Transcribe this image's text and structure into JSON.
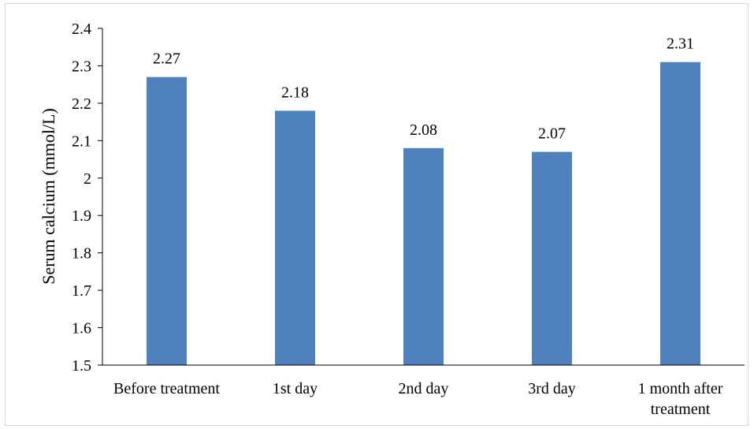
{
  "chart_data": {
    "type": "bar",
    "title": "",
    "xlabel": "",
    "ylabel": "Serum calcium (mmol/L)",
    "categories": [
      "Before treatment",
      "1st day",
      "2nd day",
      "3rd day",
      "1 month after treatment"
    ],
    "category_lines": [
      [
        "Before treatment"
      ],
      [
        "1st day"
      ],
      [
        "2nd day"
      ],
      [
        "3rd day"
      ],
      [
        "1 month after",
        "treatment"
      ]
    ],
    "values": [
      2.27,
      2.18,
      2.08,
      2.07,
      2.31
    ],
    "data_labels": [
      "2.27",
      "2.18",
      "2.08",
      "2.07",
      "2.31"
    ],
    "ylim": [
      1.5,
      2.4
    ],
    "yticks": [
      "1.5",
      "1.6",
      "1.7",
      "1.8",
      "1.9",
      "2",
      "2.1",
      "2.2",
      "2.3",
      "2.4"
    ],
    "grid": false,
    "legend": "none",
    "bar_color": "#4f81bd"
  }
}
